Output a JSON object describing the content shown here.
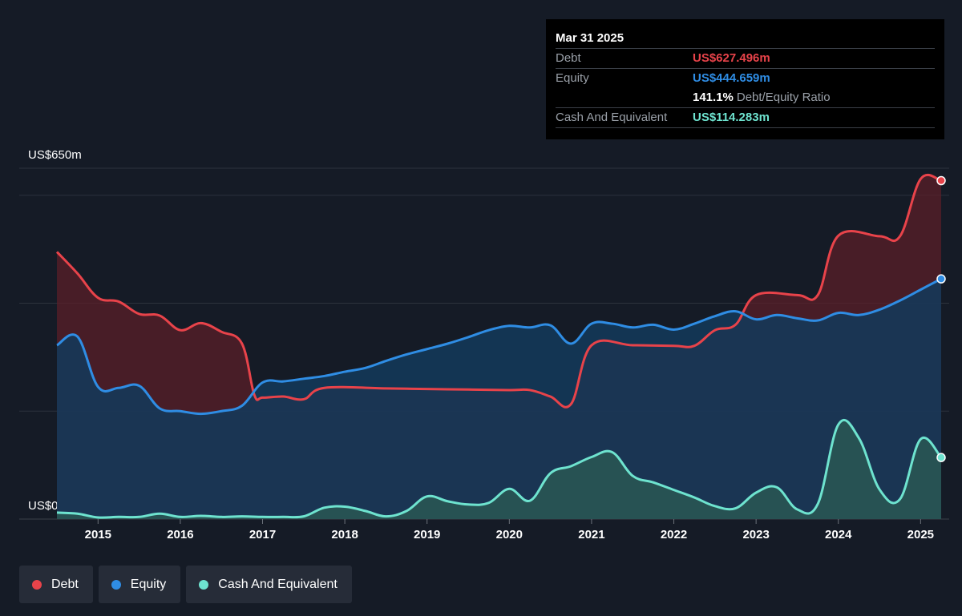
{
  "colors": {
    "debt": "#e8434a",
    "equity": "#2f8de4",
    "cash": "#6ee3cf",
    "grid": "#2d333d",
    "axis_text": "#ffffff"
  },
  "tooltip": {
    "date": "Mar 31 2025",
    "debt_label": "Debt",
    "debt_value": "US$627.496m",
    "equity_label": "Equity",
    "equity_value": "US$444.659m",
    "ratio_value": "141.1%",
    "ratio_label": "Debt/Equity Ratio",
    "cash_label": "Cash And Equivalent",
    "cash_value": "US$114.283m"
  },
  "legend": [
    {
      "label": "Debt",
      "color": "#e8434a"
    },
    {
      "label": "Equity",
      "color": "#2f8de4"
    },
    {
      "label": "Cash And Equivalent",
      "color": "#6ee3cf"
    }
  ],
  "chart_data": {
    "type": "area",
    "title": "",
    "xlabel": "",
    "ylabel": "",
    "xlim": [
      2014.5,
      2025.25
    ],
    "ylim": [
      0,
      650
    ],
    "y_tick_labels": [
      {
        "value": 650,
        "label": "US$650m"
      },
      {
        "value": 0,
        "label": "US$0"
      }
    ],
    "y_gridlines": [
      0,
      200,
      400,
      600,
      650
    ],
    "x_ticks": [
      2015,
      2016,
      2017,
      2018,
      2019,
      2020,
      2021,
      2022,
      2023,
      2024,
      2025
    ],
    "x_tick_labels": [
      "2015",
      "2016",
      "2017",
      "2018",
      "2019",
      "2020",
      "2021",
      "2022",
      "2023",
      "2024",
      "2025"
    ],
    "grid": true,
    "legend_position": "bottom-left",
    "series": [
      {
        "name": "Debt",
        "color": "#e8434a",
        "points": [
          [
            2014.5,
            495
          ],
          [
            2014.75,
            455
          ],
          [
            2015.0,
            410
          ],
          [
            2015.25,
            403
          ],
          [
            2015.5,
            380
          ],
          [
            2015.75,
            377
          ],
          [
            2016.0,
            350
          ],
          [
            2016.25,
            363
          ],
          [
            2016.5,
            347
          ],
          [
            2016.75,
            325
          ],
          [
            2016.9,
            230
          ],
          [
            2017.0,
            225
          ],
          [
            2017.25,
            227
          ],
          [
            2017.5,
            222
          ],
          [
            2017.75,
            243
          ],
          [
            2018.5,
            242
          ],
          [
            2019.0,
            241
          ],
          [
            2019.5,
            240
          ],
          [
            2020.0,
            239
          ],
          [
            2020.25,
            239
          ],
          [
            2020.5,
            227
          ],
          [
            2020.75,
            213
          ],
          [
            2021.0,
            322
          ],
          [
            2021.5,
            322
          ],
          [
            2022.0,
            321
          ],
          [
            2022.25,
            321
          ],
          [
            2022.5,
            350
          ],
          [
            2022.75,
            360
          ],
          [
            2023.0,
            415
          ],
          [
            2023.5,
            415
          ],
          [
            2023.75,
            415
          ],
          [
            2024.0,
            525
          ],
          [
            2024.5,
            524
          ],
          [
            2024.75,
            524
          ],
          [
            2025.0,
            630
          ],
          [
            2025.25,
            627
          ]
        ]
      },
      {
        "name": "Equity",
        "color": "#2f8de4",
        "points": [
          [
            2014.5,
            322
          ],
          [
            2014.75,
            338
          ],
          [
            2015.0,
            245
          ],
          [
            2015.25,
            243
          ],
          [
            2015.5,
            247
          ],
          [
            2015.75,
            205
          ],
          [
            2016.0,
            200
          ],
          [
            2016.25,
            195
          ],
          [
            2016.5,
            200
          ],
          [
            2016.75,
            210
          ],
          [
            2017.0,
            253
          ],
          [
            2017.25,
            255
          ],
          [
            2017.5,
            260
          ],
          [
            2017.75,
            265
          ],
          [
            2018.0,
            273
          ],
          [
            2018.25,
            280
          ],
          [
            2018.5,
            293
          ],
          [
            2018.75,
            305
          ],
          [
            2019.0,
            315
          ],
          [
            2019.25,
            325
          ],
          [
            2019.5,
            337
          ],
          [
            2019.75,
            350
          ],
          [
            2020.0,
            358
          ],
          [
            2020.25,
            355
          ],
          [
            2020.5,
            359
          ],
          [
            2020.75,
            325
          ],
          [
            2021.0,
            362
          ],
          [
            2021.25,
            362
          ],
          [
            2021.5,
            355
          ],
          [
            2021.75,
            360
          ],
          [
            2022.0,
            351
          ],
          [
            2022.25,
            362
          ],
          [
            2022.5,
            376
          ],
          [
            2022.75,
            385
          ],
          [
            2023.0,
            370
          ],
          [
            2023.25,
            378
          ],
          [
            2023.5,
            372
          ],
          [
            2023.75,
            368
          ],
          [
            2024.0,
            382
          ],
          [
            2024.25,
            378
          ],
          [
            2024.5,
            388
          ],
          [
            2024.75,
            405
          ],
          [
            2025.0,
            425
          ],
          [
            2025.25,
            445
          ]
        ]
      },
      {
        "name": "Cash And Equivalent",
        "color": "#6ee3cf",
        "points": [
          [
            2014.5,
            12
          ],
          [
            2014.75,
            10
          ],
          [
            2015.0,
            3
          ],
          [
            2015.25,
            4
          ],
          [
            2015.5,
            4
          ],
          [
            2015.75,
            10
          ],
          [
            2016.0,
            4
          ],
          [
            2016.25,
            6
          ],
          [
            2016.5,
            4
          ],
          [
            2016.75,
            5
          ],
          [
            2017.0,
            4
          ],
          [
            2017.25,
            4
          ],
          [
            2017.5,
            5
          ],
          [
            2017.75,
            21
          ],
          [
            2018.0,
            23
          ],
          [
            2018.25,
            15
          ],
          [
            2018.5,
            5
          ],
          [
            2018.75,
            15
          ],
          [
            2019.0,
            42
          ],
          [
            2019.25,
            33
          ],
          [
            2019.5,
            27
          ],
          [
            2019.75,
            30
          ],
          [
            2020.0,
            56
          ],
          [
            2020.25,
            34
          ],
          [
            2020.5,
            85
          ],
          [
            2020.75,
            98
          ],
          [
            2021.0,
            115
          ],
          [
            2021.25,
            124
          ],
          [
            2021.5,
            80
          ],
          [
            2021.75,
            68
          ],
          [
            2022.0,
            54
          ],
          [
            2022.25,
            40
          ],
          [
            2022.5,
            24
          ],
          [
            2022.75,
            20
          ],
          [
            2023.0,
            49
          ],
          [
            2023.25,
            59
          ],
          [
            2023.5,
            18
          ],
          [
            2023.75,
            28
          ],
          [
            2024.0,
            175
          ],
          [
            2024.25,
            150
          ],
          [
            2024.5,
            55
          ],
          [
            2024.75,
            37
          ],
          [
            2025.0,
            148
          ],
          [
            2025.25,
            114
          ]
        ]
      }
    ]
  }
}
